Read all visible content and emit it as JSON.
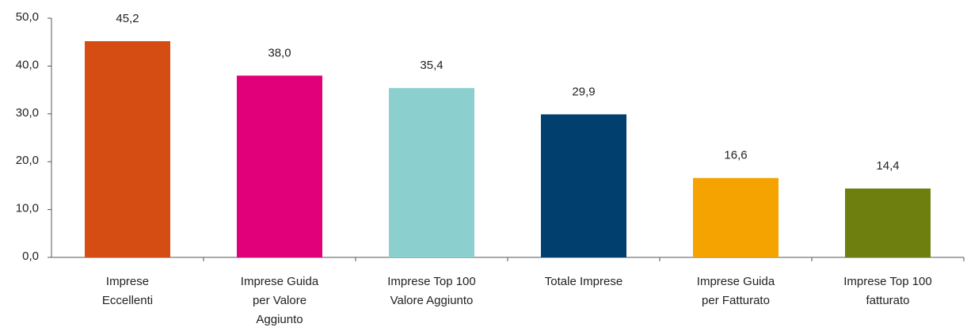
{
  "chart_data": {
    "type": "bar",
    "categories": [
      [
        "Imprese",
        "Eccellenti"
      ],
      [
        "Imprese Guida",
        "per Valore",
        "Aggiunto"
      ],
      [
        "Imprese Top 100",
        "Valore Aggiunto"
      ],
      [
        "Totale Imprese"
      ],
      [
        "Imprese Guida",
        "per Fatturato"
      ],
      [
        "Imprese Top 100",
        "fatturato"
      ]
    ],
    "values": [
      45.2,
      38.0,
      35.4,
      29.9,
      16.6,
      14.4
    ],
    "value_labels": [
      "45,2",
      "38,0",
      "35,4",
      "29,9",
      "16,6",
      "14,4"
    ],
    "colors": [
      "#d64d14",
      "#e2007a",
      "#8ccfcf",
      "#003f6e",
      "#f4a300",
      "#6e7f0f"
    ],
    "ylim": [
      0,
      50
    ],
    "yticks": [
      {
        "value": 0,
        "label": "0,0"
      },
      {
        "value": 10,
        "label": "10,0"
      },
      {
        "value": 20,
        "label": "20,0"
      },
      {
        "value": 30,
        "label": "30,0"
      },
      {
        "value": 40,
        "label": "40,0"
      },
      {
        "value": 50,
        "label": "50,0"
      }
    ],
    "grid": false
  }
}
